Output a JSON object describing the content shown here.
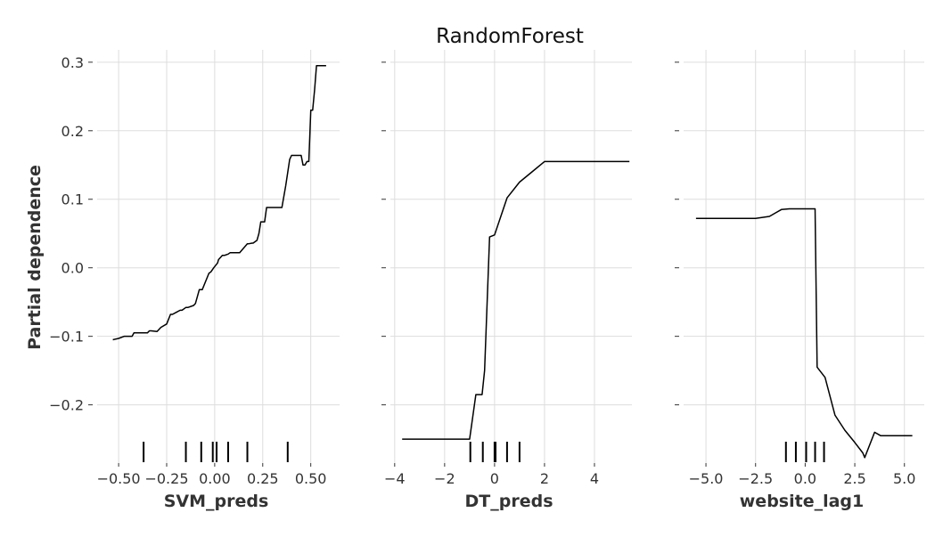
{
  "chart_data": {
    "type": "line",
    "title": "RandomForest",
    "ylabel": "Partial dependence",
    "ylim": [
      -0.285,
      0.318
    ],
    "yticks": [
      -0.2,
      -0.1,
      0.0,
      0.1,
      0.2,
      0.3
    ],
    "ytick_labels": [
      "−0.2",
      "−0.1",
      "0.0",
      "0.1",
      "0.2",
      "0.3"
    ],
    "grid": true,
    "panels": [
      {
        "xlabel": "SVM_preds",
        "xlim": [
          -0.635,
          0.65
        ],
        "xticks": [
          -0.5,
          -0.25,
          0.0,
          0.25,
          0.5
        ],
        "xtick_labels": [
          "−0.50",
          "−0.25",
          "0.00",
          "0.25",
          "0.50"
        ],
        "x": [
          -0.53,
          -0.5,
          -0.47,
          -0.43,
          -0.42,
          -0.4,
          -0.35,
          -0.34,
          -0.33,
          -0.3,
          -0.28,
          -0.25,
          -0.23,
          -0.22,
          -0.2,
          -0.18,
          -0.17,
          -0.15,
          -0.14,
          -0.11,
          -0.1,
          -0.08,
          -0.07,
          -0.065,
          -0.03,
          -0.02,
          -0.005,
          0.015,
          0.02,
          0.04,
          0.05,
          0.07,
          0.08,
          0.11,
          0.13,
          0.17,
          0.175,
          0.195,
          0.2,
          0.22,
          0.23,
          0.24,
          0.26,
          0.27,
          0.29,
          0.3,
          0.35,
          0.37,
          0.39,
          0.4,
          0.42,
          0.45,
          0.46,
          0.47,
          0.48,
          0.49,
          0.5,
          0.51,
          0.52,
          0.53,
          0.56,
          0.58
        ],
        "y": [
          -0.105,
          -0.103,
          -0.1,
          -0.1,
          -0.095,
          -0.095,
          -0.095,
          -0.092,
          -0.092,
          -0.093,
          -0.087,
          -0.082,
          -0.068,
          -0.068,
          -0.065,
          -0.062,
          -0.062,
          -0.058,
          -0.058,
          -0.055,
          -0.052,
          -0.032,
          -0.032,
          -0.032,
          -0.008,
          -0.006,
          0.0,
          0.007,
          0.012,
          0.018,
          0.018,
          0.02,
          0.022,
          0.022,
          0.022,
          0.035,
          0.035,
          0.036,
          0.036,
          0.04,
          0.05,
          0.067,
          0.067,
          0.088,
          0.088,
          0.088,
          0.088,
          0.12,
          0.158,
          0.164,
          0.164,
          0.164,
          0.15,
          0.15,
          0.155,
          0.155,
          0.23,
          0.23,
          0.26,
          0.295,
          0.295,
          0.295
        ],
        "rug": [
          -0.37,
          -0.15,
          -0.07,
          -0.01,
          0.01,
          0.07,
          0.17,
          0.38
        ]
      },
      {
        "xlabel": "DT_preds",
        "xlim": [
          -4.35,
          5.5
        ],
        "xticks": [
          -4,
          -2,
          0,
          2,
          4
        ],
        "xtick_labels": [
          "−4",
          "−2",
          "0",
          "2",
          "4"
        ],
        "x": [
          -3.7,
          -2.5,
          -1.0,
          -0.75,
          -0.5,
          -0.4,
          -0.2,
          0.0,
          0.5,
          1.0,
          1.5,
          2.0,
          5.4
        ],
        "y": [
          -0.25,
          -0.25,
          -0.25,
          -0.185,
          -0.185,
          -0.15,
          0.045,
          0.048,
          0.102,
          0.125,
          0.14,
          0.155,
          0.155
        ],
        "rug": [
          -0.97,
          -0.47,
          0.0,
          0.04,
          0.5,
          1.0
        ]
      },
      {
        "xlabel": "website_lag1",
        "xlim": [
          -6.35,
          6.0
        ],
        "xticks": [
          -5.0,
          -2.5,
          0.0,
          2.5,
          5.0
        ],
        "xtick_labels": [
          "−5.0",
          "−2.5",
          "0.0",
          "2.5",
          "5.0"
        ],
        "x": [
          -5.5,
          -4.0,
          -2.5,
          -1.8,
          -1.5,
          -1.2,
          -0.8,
          0.0,
          0.5,
          0.6,
          1.0,
          1.5,
          2.0,
          2.5,
          2.9,
          3.0,
          3.5,
          3.8,
          5.4
        ],
        "y": [
          0.072,
          0.072,
          0.072,
          0.075,
          0.08,
          0.085,
          0.086,
          0.086,
          0.086,
          -0.145,
          -0.16,
          -0.215,
          -0.237,
          -0.255,
          -0.27,
          -0.277,
          -0.24,
          -0.245,
          -0.245
        ],
        "rug": [
          -0.97,
          -0.47,
          0.05,
          0.5,
          0.95
        ]
      }
    ]
  }
}
